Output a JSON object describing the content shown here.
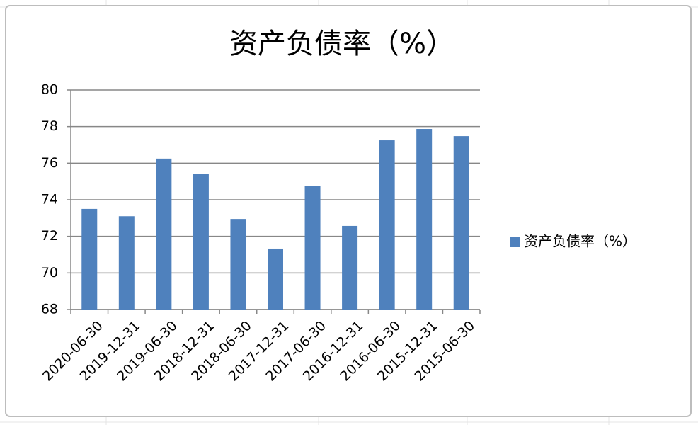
{
  "chart_data": {
    "type": "bar",
    "title": "资产负债率（%）",
    "categories": [
      "2020-06-30",
      "2019-12-31",
      "2019-06-30",
      "2018-12-31",
      "2018-06-30",
      "2017-12-31",
      "2017-06-30",
      "2016-12-31",
      "2016-06-30",
      "2015-12-31",
      "2015-06-30"
    ],
    "series": [
      {
        "name": "资产负债率（%）",
        "color": "#4f81bd",
        "values": [
          73.5,
          73.1,
          76.25,
          75.43,
          72.95,
          71.33,
          74.77,
          72.57,
          77.25,
          77.87,
          77.48
        ]
      }
    ],
    "ylim": [
      68,
      80
    ],
    "yticks": [
      68,
      70,
      72,
      74,
      76,
      78,
      80
    ],
    "grid": true,
    "legend": "right"
  }
}
